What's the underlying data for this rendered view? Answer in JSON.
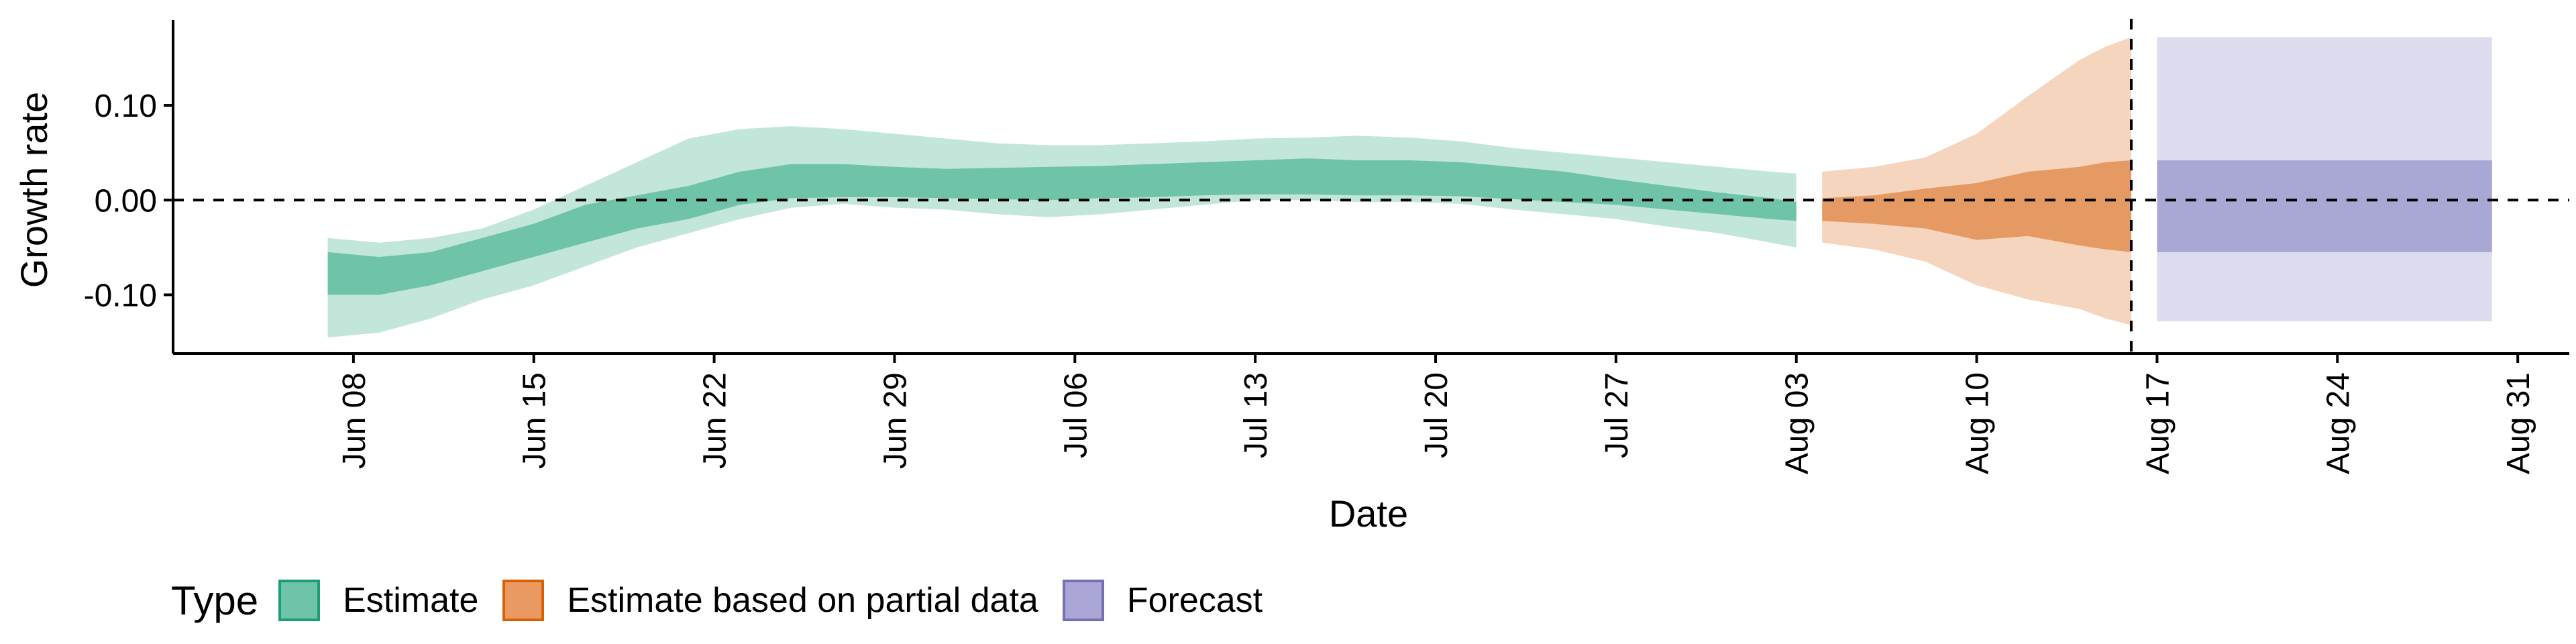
{
  "chart_data": {
    "type": "area",
    "xlabel": "Date",
    "ylabel": "Growth rate",
    "x_ticks": [
      "Jun 08",
      "Jun 15",
      "Jun 22",
      "Jun 29",
      "Jul 06",
      "Jul 13",
      "Jul 20",
      "Jul 27",
      "Aug 03",
      "Aug 10",
      "Aug 17",
      "Aug 24",
      "Aug 31"
    ],
    "y_ticks": [
      "0.10",
      "0.00",
      "-0.10"
    ],
    "y_tick_values": [
      0.1,
      0.0,
      -0.1
    ],
    "xlim": [
      "2020-06-01",
      "2020-09-02"
    ],
    "ylim": [
      -0.162,
      0.19
    ],
    "reference_hline": 0.0,
    "reference_vline": "2020-08-16",
    "legend_title": "Type",
    "legend_position": "bottom",
    "series": [
      {
        "name": "Estimate",
        "color": "#66c2a5",
        "points": [
          {
            "date": "2020-06-07",
            "outer": [
              -0.145,
              -0.04
            ],
            "inner": [
              -0.1,
              -0.055
            ]
          },
          {
            "date": "2020-06-09",
            "outer": [
              -0.14,
              -0.045
            ],
            "inner": [
              -0.1,
              -0.06
            ]
          },
          {
            "date": "2020-06-11",
            "outer": [
              -0.125,
              -0.04
            ],
            "inner": [
              -0.09,
              -0.055
            ]
          },
          {
            "date": "2020-06-13",
            "outer": [
              -0.105,
              -0.03
            ],
            "inner": [
              -0.075,
              -0.04
            ]
          },
          {
            "date": "2020-06-15",
            "outer": [
              -0.09,
              -0.01
            ],
            "inner": [
              -0.06,
              -0.025
            ]
          },
          {
            "date": "2020-06-17",
            "outer": [
              -0.07,
              0.015
            ],
            "inner": [
              -0.045,
              -0.005
            ]
          },
          {
            "date": "2020-06-19",
            "outer": [
              -0.05,
              0.04
            ],
            "inner": [
              -0.03,
              0.005
            ]
          },
          {
            "date": "2020-06-21",
            "outer": [
              -0.035,
              0.065
            ],
            "inner": [
              -0.02,
              0.015
            ]
          },
          {
            "date": "2020-06-23",
            "outer": [
              -0.02,
              0.075
            ],
            "inner": [
              -0.005,
              0.03
            ]
          },
          {
            "date": "2020-06-25",
            "outer": [
              -0.008,
              0.078
            ],
            "inner": [
              0.002,
              0.038
            ]
          },
          {
            "date": "2020-06-27",
            "outer": [
              -0.004,
              0.075
            ],
            "inner": [
              0.003,
              0.038
            ]
          },
          {
            "date": "2020-06-29",
            "outer": [
              -0.008,
              0.07
            ],
            "inner": [
              0.003,
              0.035
            ]
          },
          {
            "date": "2020-07-01",
            "outer": [
              -0.01,
              0.065
            ],
            "inner": [
              0.002,
              0.033
            ]
          },
          {
            "date": "2020-07-03",
            "outer": [
              -0.015,
              0.06
            ],
            "inner": [
              0.001,
              0.034
            ]
          },
          {
            "date": "2020-07-05",
            "outer": [
              -0.018,
              0.058
            ],
            "inner": [
              0.0,
              0.035
            ]
          },
          {
            "date": "2020-07-07",
            "outer": [
              -0.015,
              0.058
            ],
            "inner": [
              0.002,
              0.036
            ]
          },
          {
            "date": "2020-07-09",
            "outer": [
              -0.01,
              0.06
            ],
            "inner": [
              0.003,
              0.038
            ]
          },
          {
            "date": "2020-07-11",
            "outer": [
              -0.005,
              0.062
            ],
            "inner": [
              0.005,
              0.04
            ]
          },
          {
            "date": "2020-07-13",
            "outer": [
              0.0,
              0.065
            ],
            "inner": [
              0.006,
              0.042
            ]
          },
          {
            "date": "2020-07-15",
            "outer": [
              0.0,
              0.066
            ],
            "inner": [
              0.006,
              0.044
            ]
          },
          {
            "date": "2020-07-17",
            "outer": [
              -0.002,
              0.068
            ],
            "inner": [
              0.005,
              0.042
            ]
          },
          {
            "date": "2020-07-19",
            "outer": [
              -0.002,
              0.066
            ],
            "inner": [
              0.005,
              0.042
            ]
          },
          {
            "date": "2020-07-21",
            "outer": [
              -0.004,
              0.062
            ],
            "inner": [
              0.004,
              0.04
            ]
          },
          {
            "date": "2020-07-23",
            "outer": [
              -0.01,
              0.055
            ],
            "inner": [
              0.001,
              0.035
            ]
          },
          {
            "date": "2020-07-25",
            "outer": [
              -0.015,
              0.05
            ],
            "inner": [
              -0.002,
              0.03
            ]
          },
          {
            "date": "2020-07-27",
            "outer": [
              -0.02,
              0.045
            ],
            "inner": [
              -0.005,
              0.022
            ]
          },
          {
            "date": "2020-07-29",
            "outer": [
              -0.028,
              0.04
            ],
            "inner": [
              -0.01,
              0.015
            ]
          },
          {
            "date": "2020-07-31",
            "outer": [
              -0.035,
              0.035
            ],
            "inner": [
              -0.015,
              0.008
            ]
          },
          {
            "date": "2020-08-02",
            "outer": [
              -0.045,
              0.03
            ],
            "inner": [
              -0.02,
              0.002
            ]
          },
          {
            "date": "2020-08-03",
            "outer": [
              -0.05,
              0.028
            ],
            "inner": [
              -0.022,
              -0.002
            ]
          }
        ]
      },
      {
        "name": "Estimate based on partial data",
        "color": "#fc8d62",
        "fill_inner": "#e69a63",
        "fill_outer": "#f5d5bd",
        "points": [
          {
            "date": "2020-08-04",
            "outer": [
              -0.045,
              0.03
            ],
            "inner": [
              -0.022,
              0.002
            ]
          },
          {
            "date": "2020-08-06",
            "outer": [
              -0.052,
              0.035
            ],
            "inner": [
              -0.025,
              0.005
            ]
          },
          {
            "date": "2020-08-08",
            "outer": [
              -0.065,
              0.045
            ],
            "inner": [
              -0.03,
              0.012
            ]
          },
          {
            "date": "2020-08-10",
            "outer": [
              -0.09,
              0.07
            ],
            "inner": [
              -0.042,
              0.018
            ]
          },
          {
            "date": "2020-08-12",
            "outer": [
              -0.105,
              0.11
            ],
            "inner": [
              -0.038,
              0.03
            ]
          },
          {
            "date": "2020-08-14",
            "outer": [
              -0.115,
              0.148
            ],
            "inner": [
              -0.048,
              0.035
            ]
          },
          {
            "date": "2020-08-15",
            "outer": [
              -0.125,
              0.162
            ],
            "inner": [
              -0.052,
              0.04
            ]
          },
          {
            "date": "2020-08-16",
            "outer": [
              -0.132,
              0.172
            ],
            "inner": [
              -0.055,
              0.042
            ]
          }
        ]
      },
      {
        "name": "Forecast",
        "color": "#8da0cb",
        "fill_inner": "#a9a7d4",
        "fill_outer": "#dcdcee",
        "points": [
          {
            "date": "2020-08-17",
            "outer": [
              -0.128,
              0.172
            ],
            "inner": [
              -0.055,
              0.042
            ]
          },
          {
            "date": "2020-08-30",
            "outer": [
              -0.128,
              0.172
            ],
            "inner": [
              -0.055,
              0.042
            ]
          }
        ]
      }
    ]
  },
  "legend": {
    "title": "Type",
    "items": [
      {
        "label": "Estimate",
        "fill": "#6ec3a8",
        "border": "#1b9e77"
      },
      {
        "label": "Estimate based on partial data",
        "fill": "#e99a63",
        "border": "#d95f02"
      },
      {
        "label": "Forecast",
        "fill": "#aaa6d5",
        "border": "#7570b3"
      }
    ]
  }
}
